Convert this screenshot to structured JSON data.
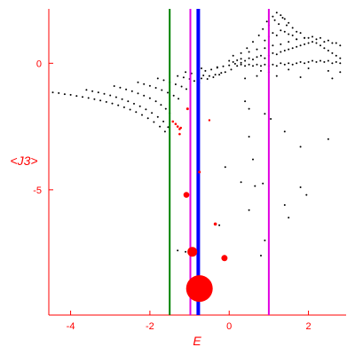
{
  "chart_data": {
    "type": "scatter",
    "xlabel": "E",
    "ylabel": "<J3>",
    "xlim": [
      -4.55,
      2.95
    ],
    "ylim": [
      -9.95,
      2.15
    ],
    "x_ticks": [
      {
        "value": -4,
        "label": "-4"
      },
      {
        "value": -2,
        "label": "-2"
      },
      {
        "value": 0,
        "label": "0"
      },
      {
        "value": 2,
        "label": "2"
      }
    ],
    "y_ticks": [
      {
        "value": 0,
        "label": "0"
      },
      {
        "value": -5,
        "label": "-5"
      }
    ],
    "axis_color": "#ff0000",
    "vertical_lines": [
      {
        "x": -1.5,
        "color": "#008000",
        "width": 2
      },
      {
        "x": -0.98,
        "color": "#e000e0",
        "width": 2
      },
      {
        "x": -0.78,
        "color": "#0000ff",
        "width": 4
      },
      {
        "x": 1.0,
        "color": "#e000e0",
        "width": 2
      }
    ],
    "red_points": [
      {
        "x": -0.75,
        "y": -8.9,
        "r": 15
      },
      {
        "x": -0.93,
        "y": -7.45,
        "r": 5.5
      },
      {
        "x": -0.12,
        "y": -7.7,
        "r": 3.5
      },
      {
        "x": -1.08,
        "y": -5.2,
        "r": 3.3
      },
      {
        "x": -0.35,
        "y": -6.35,
        "r": 1.8
      },
      {
        "x": -0.75,
        "y": -4.3,
        "r": 1.5
      },
      {
        "x": -1.05,
        "y": -1.8,
        "r": 1.5
      },
      {
        "x": -1.42,
        "y": -2.3,
        "r": 1.3
      },
      {
        "x": -1.35,
        "y": -2.4,
        "r": 1.3
      },
      {
        "x": -1.3,
        "y": -2.5,
        "r": 1.3
      },
      {
        "x": -1.22,
        "y": -2.55,
        "r": 1.3
      },
      {
        "x": -1.25,
        "y": -2.6,
        "r": 1.3
      },
      {
        "x": -1.25,
        "y": -2.8,
        "r": 1.3
      },
      {
        "x": -0.5,
        "y": -2.25,
        "r": 1.2
      }
    ],
    "black_points": [
      [
        -4.45,
        -1.15
      ],
      [
        -4.3,
        -1.18
      ],
      [
        -4.15,
        -1.22
      ],
      [
        -4.0,
        -1.25
      ],
      [
        -3.85,
        -1.29
      ],
      [
        -3.7,
        -1.33
      ],
      [
        -3.55,
        -1.37
      ],
      [
        -3.4,
        -1.42
      ],
      [
        -3.25,
        -1.47
      ],
      [
        -3.1,
        -1.53
      ],
      [
        -2.95,
        -1.59
      ],
      [
        -2.8,
        -1.66
      ],
      [
        -2.65,
        -1.74
      ],
      [
        -2.5,
        -1.83
      ],
      [
        -2.35,
        -1.93
      ],
      [
        -2.2,
        -2.04
      ],
      [
        -2.05,
        -2.17
      ],
      [
        -1.9,
        -2.32
      ],
      [
        -1.75,
        -2.5
      ],
      [
        -1.62,
        -2.7
      ],
      [
        -3.6,
        -1.05
      ],
      [
        -3.45,
        -1.1
      ],
      [
        -3.3,
        -1.15
      ],
      [
        -3.15,
        -1.21
      ],
      [
        -3.0,
        -1.27
      ],
      [
        -2.85,
        -1.34
      ],
      [
        -2.7,
        -1.42
      ],
      [
        -2.55,
        -1.5
      ],
      [
        -2.4,
        -1.6
      ],
      [
        -2.25,
        -1.7
      ],
      [
        -2.1,
        -1.82
      ],
      [
        -1.95,
        -1.96
      ],
      [
        -1.8,
        -2.12
      ],
      [
        -1.66,
        -2.3
      ],
      [
        -1.54,
        -2.52
      ],
      [
        -2.9,
        -0.9
      ],
      [
        -2.75,
        -0.96
      ],
      [
        -2.6,
        -1.03
      ],
      [
        -2.45,
        -1.1
      ],
      [
        -2.3,
        -1.19
      ],
      [
        -2.15,
        -1.28
      ],
      [
        -2.0,
        -1.38
      ],
      [
        -1.85,
        -1.5
      ],
      [
        -1.72,
        -1.64
      ],
      [
        -1.6,
        -1.8
      ],
      [
        -1.5,
        -1.97
      ],
      [
        -2.3,
        -0.75
      ],
      [
        -2.15,
        -0.82
      ],
      [
        -2.0,
        -0.89
      ],
      [
        -1.85,
        -0.97
      ],
      [
        -1.7,
        -1.06
      ],
      [
        -1.55,
        -1.16
      ],
      [
        -1.4,
        -1.28
      ],
      [
        -1.28,
        -1.4
      ],
      [
        -1.8,
        -0.6
      ],
      [
        -1.65,
        -0.67
      ],
      [
        -1.5,
        -0.75
      ],
      [
        -1.35,
        -0.83
      ],
      [
        -1.2,
        -0.92
      ],
      [
        -1.08,
        -1.02
      ],
      [
        -1.3,
        -0.5
      ],
      [
        -1.15,
        -0.56
      ],
      [
        -1.0,
        -0.62
      ],
      [
        -0.88,
        -0.7
      ],
      [
        -0.76,
        -0.77
      ],
      [
        -1.1,
        -0.35
      ],
      [
        -0.95,
        -0.4
      ],
      [
        -0.8,
        -0.44
      ],
      [
        -0.65,
        -0.48
      ],
      [
        -0.5,
        -0.5
      ],
      [
        -0.35,
        -0.45
      ],
      [
        -0.2,
        -0.38
      ],
      [
        -0.6,
        -0.3
      ],
      [
        -0.45,
        -0.25
      ],
      [
        -0.3,
        -0.18
      ],
      [
        -0.15,
        -0.12
      ],
      [
        0.0,
        -0.08
      ],
      [
        0.15,
        -0.02
      ],
      [
        0.3,
        0.02
      ],
      [
        -0.7,
        -0.6
      ],
      [
        -0.55,
        -0.62
      ],
      [
        -0.4,
        -0.55
      ],
      [
        -0.25,
        -0.45
      ],
      [
        -0.1,
        -0.35
      ],
      [
        0.05,
        -0.25
      ],
      [
        0.0,
        0.1
      ],
      [
        0.1,
        0.05
      ],
      [
        0.2,
        0.12
      ],
      [
        0.3,
        0.18
      ],
      [
        0.4,
        0.1
      ],
      [
        0.5,
        0.2
      ],
      [
        0.6,
        0.15
      ],
      [
        0.7,
        0.25
      ],
      [
        0.8,
        0.3
      ],
      [
        0.9,
        0.2
      ],
      [
        1.0,
        0.3
      ],
      [
        1.1,
        0.4
      ],
      [
        1.2,
        0.35
      ],
      [
        1.3,
        0.45
      ],
      [
        1.4,
        0.5
      ],
      [
        1.5,
        0.55
      ],
      [
        1.6,
        0.6
      ],
      [
        1.7,
        0.65
      ],
      [
        1.8,
        0.7
      ],
      [
        1.9,
        0.75
      ],
      [
        2.0,
        0.8
      ],
      [
        2.1,
        0.85
      ],
      [
        2.2,
        0.8
      ],
      [
        2.3,
        0.7
      ],
      [
        2.4,
        0.6
      ],
      [
        2.5,
        0.5
      ],
      [
        2.6,
        0.4
      ],
      [
        2.7,
        0.3
      ],
      [
        2.8,
        0.2
      ],
      [
        0.2,
        -0.1
      ],
      [
        0.3,
        -0.05
      ],
      [
        0.4,
        -0.1
      ],
      [
        0.5,
        -0.05
      ],
      [
        0.6,
        -0.1
      ],
      [
        0.7,
        -0.05
      ],
      [
        0.8,
        -0.1
      ],
      [
        0.9,
        -0.05
      ],
      [
        1.0,
        -0.1
      ],
      [
        1.1,
        -0.05
      ],
      [
        1.2,
        -0.1
      ],
      [
        1.3,
        0.0
      ],
      [
        1.4,
        -0.05
      ],
      [
        1.5,
        0.0
      ],
      [
        1.6,
        -0.05
      ],
      [
        1.7,
        0.0
      ],
      [
        1.8,
        0.05
      ],
      [
        1.9,
        0.0
      ],
      [
        2.0,
        0.05
      ],
      [
        2.1,
        0.1
      ],
      [
        2.2,
        0.05
      ],
      [
        2.3,
        0.1
      ],
      [
        2.4,
        0.05
      ],
      [
        2.5,
        0.1
      ],
      [
        2.6,
        0.0
      ],
      [
        2.7,
        0.05
      ],
      [
        2.8,
        0.0
      ],
      [
        0.1,
        0.3
      ],
      [
        0.3,
        0.4
      ],
      [
        0.5,
        0.45
      ],
      [
        0.7,
        0.55
      ],
      [
        0.9,
        0.6
      ],
      [
        1.1,
        0.7
      ],
      [
        1.3,
        0.75
      ],
      [
        1.5,
        0.85
      ],
      [
        1.7,
        0.95
      ],
      [
        1.9,
        1.0
      ],
      [
        2.1,
        1.05
      ],
      [
        2.3,
        1.0
      ],
      [
        2.5,
        0.9
      ],
      [
        2.7,
        0.8
      ],
      [
        0.9,
        0.9
      ],
      [
        1.0,
        1.05
      ],
      [
        1.1,
        1.2
      ],
      [
        1.2,
        1.1
      ],
      [
        1.3,
        1.3
      ],
      [
        1.4,
        1.25
      ],
      [
        1.5,
        1.15
      ],
      [
        1.6,
        1.1
      ],
      [
        1.7,
        0.95
      ],
      [
        1.8,
        1.2
      ],
      [
        1.9,
        1.0
      ],
      [
        2.0,
        1.0
      ],
      [
        2.2,
        0.95
      ],
      [
        2.4,
        0.85
      ],
      [
        2.6,
        0.8
      ],
      [
        2.8,
        0.7
      ],
      [
        0.85,
        1.35
      ],
      [
        1.0,
        1.5
      ],
      [
        1.15,
        1.7
      ],
      [
        1.3,
        1.9
      ],
      [
        1.4,
        1.75
      ],
      [
        1.5,
        1.6
      ],
      [
        1.6,
        1.4
      ],
      [
        1.7,
        1.25
      ],
      [
        1.2,
        2.0
      ],
      [
        1.35,
        1.8
      ],
      [
        0.95,
        1.65
      ],
      [
        1.1,
        1.85
      ],
      [
        1.45,
        1.5
      ],
      [
        1.25,
        1.55
      ],
      [
        0.75,
        1.1
      ],
      [
        0.6,
        0.85
      ],
      [
        0.45,
        0.6
      ],
      [
        0.8,
        -0.3
      ],
      [
        1.0,
        -0.35
      ],
      [
        1.5,
        -0.25
      ],
      [
        2.0,
        -0.2
      ],
      [
        2.5,
        -0.3
      ],
      [
        2.8,
        -0.35
      ],
      [
        2.6,
        -0.6
      ],
      [
        1.8,
        -0.55
      ],
      [
        1.2,
        -0.5
      ],
      [
        0.7,
        -0.5
      ],
      [
        0.4,
        -1.5
      ],
      [
        0.9,
        -2.0
      ],
      [
        1.05,
        -2.2
      ],
      [
        0.5,
        -2.9
      ],
      [
        1.4,
        -2.7
      ],
      [
        2.5,
        -3.0
      ],
      [
        0.6,
        -3.8
      ],
      [
        1.8,
        -3.3
      ],
      [
        -0.1,
        -4.1
      ],
      [
        0.3,
        -4.7
      ],
      [
        0.65,
        -4.85
      ],
      [
        0.85,
        -4.75
      ],
      [
        1.8,
        -4.9
      ],
      [
        1.95,
        -5.2
      ],
      [
        1.4,
        -5.6
      ],
      [
        1.5,
        -6.1
      ],
      [
        0.5,
        -5.8
      ],
      [
        0.9,
        -7.0
      ],
      [
        0.8,
        -7.6
      ],
      [
        -0.25,
        -6.4
      ],
      [
        -1.1,
        -7.45
      ],
      [
        -1.3,
        -7.4
      ],
      [
        0.5,
        -1.8
      ],
      [
        0.4,
        -0.6
      ],
      [
        -0.7,
        -0.2
      ],
      [
        -0.3,
        -0.15
      ]
    ]
  }
}
